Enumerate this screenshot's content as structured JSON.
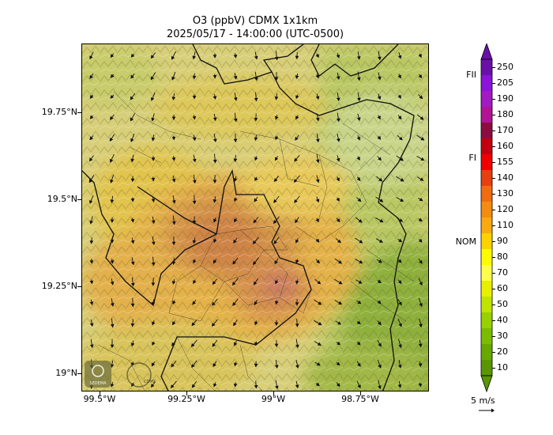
{
  "title_line1": "O3 (ppbV) CDMX 1x1km",
  "title_line2": "2025/05/17 - 14:00:00 (UTC-0500)",
  "y_ticks": [
    "19.75°N",
    "19.5°N",
    "19.25°N",
    "19°N"
  ],
  "x_ticks": [
    "99.5°W",
    "99.25°W",
    "99°W",
    "98.75°W"
  ],
  "colorbar": {
    "levels": [
      "250",
      "205",
      "190",
      "180",
      "170",
      "160",
      "155",
      "140",
      "130",
      "120",
      "110",
      "90",
      "80",
      "70",
      "60",
      "50",
      "40",
      "30",
      "20",
      "10"
    ],
    "colors": [
      "#6a10a8",
      "#8a14d8",
      "#a21ac4",
      "#b01494",
      "#8c0c40",
      "#c40010",
      "#f00000",
      "#e64010",
      "#f06c10",
      "#f48c10",
      "#f8aa10",
      "#fcd200",
      "#fffc00",
      "#ffff4c",
      "#e8f000",
      "#c0e400",
      "#98d000",
      "#7cbc00",
      "#68a800",
      "#5a9600"
    ],
    "side_labels": {
      "FII": "FII",
      "FI": "FI",
      "NOM": "NOM"
    },
    "wind_scale": "5 m/s"
  },
  "logos": {
    "left": "SEDEMA",
    "right": "CDMX"
  }
}
